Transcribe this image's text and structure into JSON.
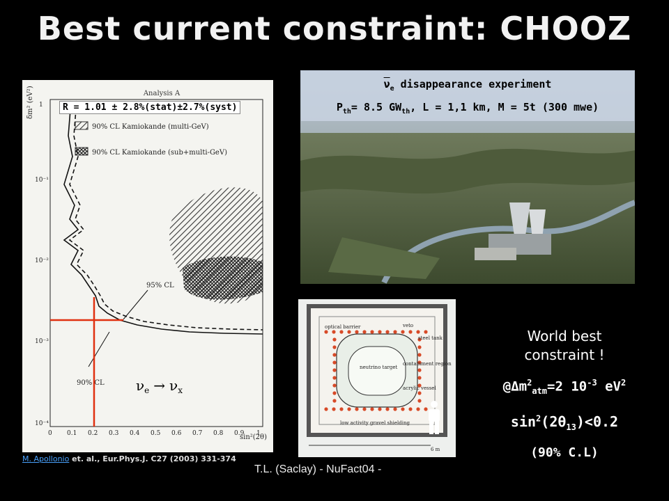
{
  "title": "Best current constraint: CHOOZ",
  "plot": {
    "header": "Analysis A",
    "caption": "R = 1.01 ± 2.8%(stat)±2.7%(syst)",
    "legend_multi": "90% CL Kamiokande (multi-GeV)",
    "legend_submulti": "90% CL Kamiokande (sub+multi-GeV)",
    "label_95": "95% CL",
    "label_90": "90% CL",
    "y_axis_label": "δm² (eV²)",
    "x_axis_label": "sin²(2θ)",
    "x_ticks": [
      "0",
      "0.1",
      "0.2",
      "0.3",
      "0.4",
      "0.5",
      "0.6",
      "0.7",
      "0.8",
      "0.9",
      "1"
    ],
    "y_ticks": [
      "1",
      "10⁻¹",
      "10⁻²",
      "10⁻³",
      "10⁻⁴"
    ],
    "channel_nu_e": "ν",
    "channel_sub_e": "e",
    "channel_arrow": "→",
    "channel_nu_x": "ν",
    "channel_sub_x": "x"
  },
  "reference": {
    "author": "M. Apollonio",
    "rest": " et. al., Eur.Phys.J. C27 (2003) 331-374"
  },
  "photo": {
    "line1": "ν̄e disappearance experiment",
    "line1_nu": "ν",
    "line1_sub": "e",
    "line1_text": " disappearance experiment",
    "line2_P": "P",
    "line2_sub_th": "th",
    "line2_mid": "= 8.5 GW",
    "line2_sub_th2": "th",
    "line2_end": ",  L = 1,1 km, M = 5t (300 mwe)"
  },
  "detector": {
    "optical_barrier": "optical barrier",
    "veto": "veto",
    "steel_tank": "steel tank",
    "neutrino_target": "neutrino target",
    "containment_region": "containment region",
    "acrylic_vessel": "acrylic vessel",
    "gravel": "low activity gravel shielding",
    "scale": "6 m"
  },
  "right": {
    "world_line1": "World best",
    "world_line2": "constraint !",
    "atm_prefix": "@Δm",
    "atm_sup": "2",
    "atm_sub": "atm",
    "atm_rest": "=2 10",
    "atm_exp": "-3",
    "atm_unit": " eV",
    "atm_unit_sup": "2",
    "sin_prefix": "sin",
    "sin_sup": "2",
    "sin_mid": "(2θ",
    "sin_sub": "13",
    "sin_rest": ")<0.2",
    "cl": "(90% C.L)"
  },
  "footer": "T.L. (Saclay) - NuFact04 -",
  "colors": {
    "background": "#000000",
    "red_line": "#e03010",
    "link": "#4aa3ff"
  }
}
